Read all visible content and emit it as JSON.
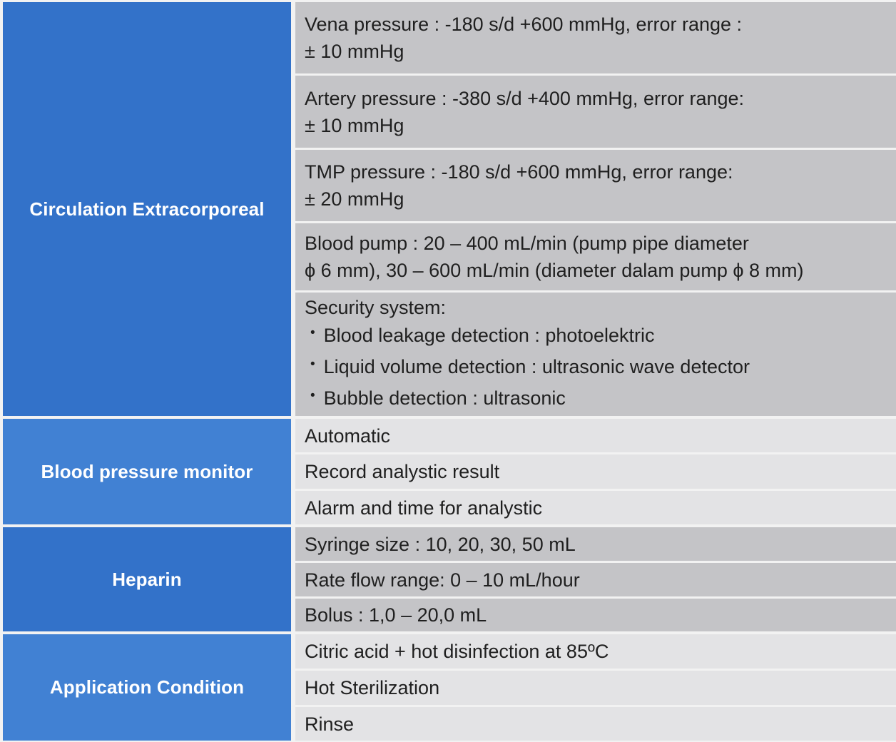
{
  "colors": {
    "blue_dark": "#3372c9",
    "blue_light": "#4181d3",
    "gray_medium": "#c4c4c7",
    "gray_light": "#e3e3e5",
    "separator": "#f2f2f2",
    "text": "#1f1f1f"
  },
  "table": {
    "sections": [
      {
        "label": "Circulation Extracorporeal",
        "rows": [
          {
            "lines": [
              "Vena pressure : -180 s/d +600 mmHg, error range :",
              "± 10 mmHg"
            ]
          },
          {
            "lines": [
              "Artery pressure : -380 s/d +400 mmHg, error range:",
              "± 10 mmHg"
            ]
          },
          {
            "lines": [
              "TMP pressure : -180 s/d +600 mmHg, error range:",
              "± 20 mmHg"
            ]
          },
          {
            "lines": [
              "Blood pump : 20 – 400 mL/min (pump pipe diameter",
              "ϕ 6 mm), 30 – 600 mL/min (diameter dalam pump ϕ 8 mm)"
            ]
          },
          {
            "lines": [
              "Security system:"
            ],
            "bullet_glyph": "•",
            "bullets": [
              "Blood leakage detection : photoelektric",
              "Liquid volume detection : ultrasonic wave detector",
              "Bubble detection : ultrasonic"
            ]
          }
        ]
      },
      {
        "label": "Blood pressure monitor",
        "rows": [
          {
            "lines": [
              "Automatic"
            ]
          },
          {
            "lines": [
              "Record analystic result"
            ]
          },
          {
            "lines": [
              "Alarm and time for analystic"
            ]
          }
        ]
      },
      {
        "label": "Heparin",
        "rows": [
          {
            "lines": [
              "Syringe size : 10, 20, 30, 50 mL"
            ]
          },
          {
            "lines": [
              "Rate flow range: 0 – 10 mL/hour"
            ]
          },
          {
            "lines": [
              "Bolus : 1,0 – 20,0 mL"
            ]
          }
        ]
      },
      {
        "label": "Application Condition",
        "rows": [
          {
            "lines": [
              "Citric acid + hot disinfection at 85ºC"
            ]
          },
          {
            "lines": [
              "Hot Sterilization"
            ]
          },
          {
            "lines": [
              "Rinse"
            ]
          }
        ]
      }
    ]
  }
}
